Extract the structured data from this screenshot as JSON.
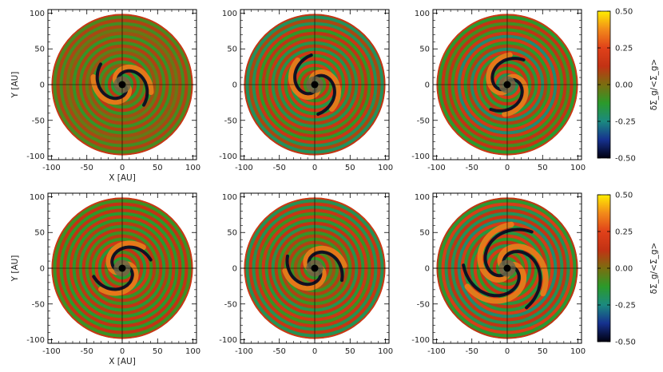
{
  "chart_data": {
    "type": "heatmap",
    "description_layout": "2x3 grid of polar surface-density perturbation maps",
    "xlabel": "X [AU]",
    "ylabel": "Y [AU]",
    "xlim": [
      -105,
      105
    ],
    "ylim": [
      -105,
      105
    ],
    "x_ticks": [
      -100,
      -50,
      0,
      50,
      100
    ],
    "y_ticks": [
      -100,
      -50,
      0,
      50,
      100
    ],
    "disk_outer_radius_au": 100,
    "colorbar": {
      "label": "δΣ_g/<Σ_g>",
      "range": [
        -0.5,
        0.5
      ],
      "ticks": [
        "0.50",
        "0.25",
        "0.00",
        "-0.25",
        "-0.50"
      ],
      "tick_values": [
        0.5,
        0.25,
        0,
        -0.25,
        -0.5
      ],
      "colors": [
        "#000010",
        "#16318f",
        "#1b8a80",
        "#2b9a2a",
        "#7a6e10",
        "#c23214",
        "#e0411a",
        "#f28a1a",
        "#ffee00"
      ]
    },
    "panels": [
      {
        "row": 0,
        "col": 0,
        "inner_feature": "spiral",
        "ring_amplitude": 0.5
      },
      {
        "row": 0,
        "col": 1,
        "inner_feature": "spiral",
        "ring_amplitude": 0.75
      },
      {
        "row": 0,
        "col": 2,
        "inner_feature": "spiral",
        "ring_amplitude": 0.85
      },
      {
        "row": 1,
        "col": 0,
        "inner_feature": "spiral",
        "ring_amplitude": 0.7
      },
      {
        "row": 1,
        "col": 1,
        "inner_feature": "spiral",
        "ring_amplitude": 0.7
      },
      {
        "row": 1,
        "col": 2,
        "inner_feature": "multi-arm spiral",
        "ring_amplitude": 0.9
      }
    ]
  }
}
